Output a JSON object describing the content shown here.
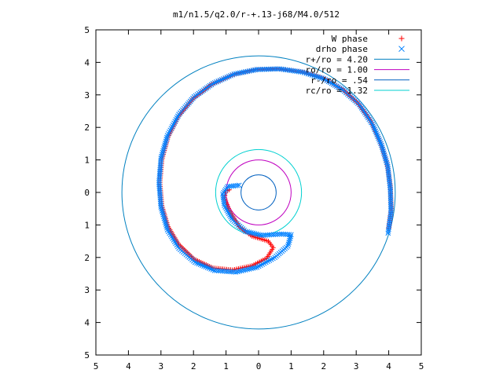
{
  "chart_data": {
    "type": "scatter",
    "title": "m1/n1.5/q2.0/r-+.13-j68/M4.0/512",
    "xlabel": "",
    "ylabel": "",
    "xlim": [
      -5,
      5
    ],
    "ylim": [
      -5,
      5
    ],
    "xticks": [
      -5,
      -4,
      -3,
      -2,
      -1,
      0,
      1,
      2,
      3,
      4,
      5
    ],
    "yticks": [
      -5,
      -4,
      -3,
      -2,
      -1,
      0,
      1,
      2,
      3,
      4,
      5
    ],
    "xtick_labels": [
      "5",
      "4",
      "3",
      "2",
      "1",
      "0",
      "1",
      "2",
      "3",
      "4",
      "5"
    ],
    "ytick_labels": [
      "5",
      "4",
      "3",
      "2",
      "1",
      "0",
      "1",
      "2",
      "3",
      "4",
      "5"
    ],
    "grid": false,
    "legend_position": "top-right",
    "series": [
      {
        "name": "W phase",
        "kind": "markers",
        "marker": "plus",
        "color": "#ff0000",
        "points": [
          [
            4.0,
            -1.1
          ],
          [
            4.08,
            -0.5
          ],
          [
            4.05,
            0.2
          ],
          [
            3.95,
            0.9
          ],
          [
            3.75,
            1.55
          ],
          [
            3.45,
            2.2
          ],
          [
            3.05,
            2.75
          ],
          [
            2.55,
            3.2
          ],
          [
            1.95,
            3.52
          ],
          [
            1.3,
            3.72
          ],
          [
            0.6,
            3.8
          ],
          [
            -0.1,
            3.78
          ],
          [
            -0.8,
            3.62
          ],
          [
            -1.45,
            3.32
          ],
          [
            -2.0,
            2.9
          ],
          [
            -2.45,
            2.35
          ],
          [
            -2.78,
            1.7
          ],
          [
            -2.97,
            1.0
          ],
          [
            -3.03,
            0.3
          ],
          [
            -2.97,
            -0.4
          ],
          [
            -2.78,
            -1.05
          ],
          [
            -2.45,
            -1.6
          ],
          [
            -1.98,
            -2.05
          ],
          [
            -1.4,
            -2.32
          ],
          [
            -0.8,
            -2.38
          ],
          [
            -0.2,
            -2.25
          ],
          [
            0.25,
            -2.02
          ],
          [
            0.45,
            -1.7
          ],
          [
            0.3,
            -1.5
          ],
          [
            -0.2,
            -1.35
          ],
          [
            -0.6,
            -1.05
          ],
          [
            -0.9,
            -0.55
          ],
          [
            -1.05,
            -0.15
          ],
          [
            -1.0,
            0.05
          ],
          [
            -0.9,
            0.08
          ]
        ]
      },
      {
        "name": "drho phase",
        "kind": "markers",
        "marker": "cross",
        "color": "#0080ff",
        "points": [
          [
            3.98,
            -1.25
          ],
          [
            4.07,
            -0.6
          ],
          [
            4.05,
            0.1
          ],
          [
            3.97,
            0.8
          ],
          [
            3.78,
            1.45
          ],
          [
            3.5,
            2.1
          ],
          [
            3.1,
            2.7
          ],
          [
            2.6,
            3.15
          ],
          [
            2.0,
            3.5
          ],
          [
            1.35,
            3.7
          ],
          [
            0.65,
            3.8
          ],
          [
            -0.05,
            3.78
          ],
          [
            -0.75,
            3.64
          ],
          [
            -1.4,
            3.35
          ],
          [
            -1.98,
            2.94
          ],
          [
            -2.45,
            2.4
          ],
          [
            -2.8,
            1.75
          ],
          [
            -3.0,
            1.05
          ],
          [
            -3.06,
            0.3
          ],
          [
            -3.0,
            -0.45
          ],
          [
            -2.8,
            -1.15
          ],
          [
            -2.45,
            -1.72
          ],
          [
            -1.95,
            -2.15
          ],
          [
            -1.35,
            -2.4
          ],
          [
            -0.7,
            -2.45
          ],
          [
            -0.05,
            -2.3
          ],
          [
            0.5,
            -2.0
          ],
          [
            0.9,
            -1.65
          ],
          [
            1.0,
            -1.3
          ],
          [
            0.7,
            -1.28
          ],
          [
            0.1,
            -1.32
          ],
          [
            -0.4,
            -1.2
          ],
          [
            -0.8,
            -0.85
          ],
          [
            -1.05,
            -0.4
          ],
          [
            -1.1,
            -0.05
          ],
          [
            -0.95,
            0.18
          ],
          [
            -0.6,
            0.22
          ]
        ]
      },
      {
        "name": "r+/ro = 4.20",
        "kind": "circle",
        "radius": 4.2,
        "color": "#0080c0"
      },
      {
        "name": "ro/ro = 1.00",
        "kind": "circle",
        "radius": 1.0,
        "color": "#c000c0"
      },
      {
        "name": "r-/ro = .54",
        "kind": "circle",
        "radius": 0.54,
        "color": "#0060c0"
      },
      {
        "name": "rc/ro = 1.32",
        "kind": "circle",
        "radius": 1.32,
        "color": "#00d0d0"
      }
    ]
  }
}
